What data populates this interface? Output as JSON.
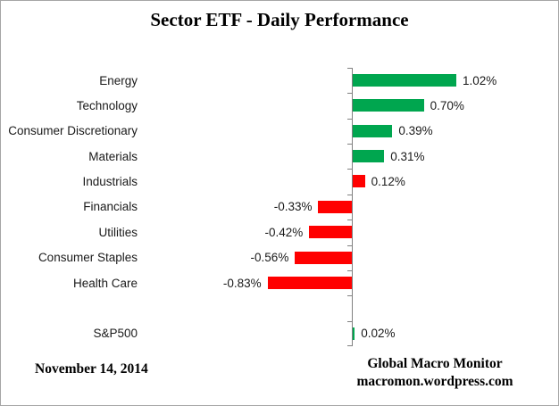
{
  "title": "Sector ETF - Daily Performance",
  "footer": {
    "date": "November 14, 2014",
    "source_line1": "Global Macro Monitor",
    "source_line2": "macromon.wordpress.com"
  },
  "chart_data": {
    "type": "bar",
    "orientation": "horizontal",
    "title": "Sector ETF - Daily Performance",
    "value_unit": "percent",
    "colors": {
      "positive": "#00A64F",
      "negative": "#FF0000",
      "axis": "#808080"
    },
    "layout_hints": {
      "zero_line": true,
      "grid": false,
      "legend": "none",
      "value_labels": "outside-end",
      "note": "Industrials bar is colored red despite positive value; blank row separates sectors from S&P500"
    },
    "rows": [
      {
        "label": "Energy",
        "value": 1.02,
        "value_label": "1.02%",
        "color": "green"
      },
      {
        "label": "Technology",
        "value": 0.7,
        "value_label": "0.70%",
        "color": "green"
      },
      {
        "label": "Consumer Discretionary",
        "value": 0.39,
        "value_label": "0.39%",
        "color": "green"
      },
      {
        "label": "Materials",
        "value": 0.31,
        "value_label": "0.31%",
        "color": "green"
      },
      {
        "label": "Industrials",
        "value": 0.12,
        "value_label": "0.12%",
        "color": "red"
      },
      {
        "label": "Financials",
        "value": -0.33,
        "value_label": "-0.33%",
        "color": "red"
      },
      {
        "label": "Utilities",
        "value": -0.42,
        "value_label": "-0.42%",
        "color": "red"
      },
      {
        "label": "Consumer Staples",
        "value": -0.56,
        "value_label": "-0.56%",
        "color": "red"
      },
      {
        "label": "Health Care",
        "value": -0.83,
        "value_label": "-0.83%",
        "color": "red"
      },
      {
        "label": "",
        "value": null,
        "value_label": "",
        "color": null
      },
      {
        "label": "S&P500",
        "value": 0.02,
        "value_label": "0.02%",
        "color": "green"
      }
    ]
  }
}
